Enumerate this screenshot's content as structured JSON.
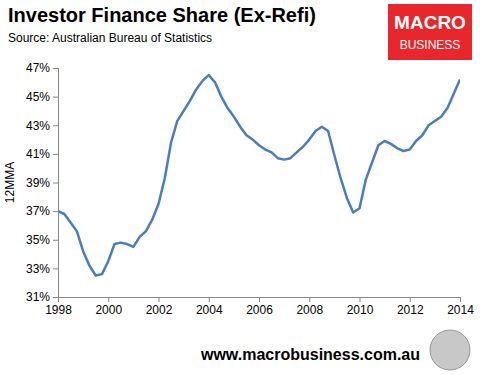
{
  "chart_data": {
    "type": "line",
    "title": "Investor Finance Share (Ex-Refi)",
    "subtitle": "Source: Australian Bureau of Statistics",
    "ylabel": "12MMA",
    "annotations": [
      "MACRO",
      "BUSINESS",
      "www.macrobusiness.com.au"
    ],
    "color": "#4a7ebb",
    "x": [
      1998.0,
      1998.25,
      1998.5,
      1998.75,
      1999.0,
      1999.25,
      1999.5,
      1999.75,
      2000.0,
      2000.25,
      2000.5,
      2000.75,
      2001.0,
      2001.25,
      2001.5,
      2001.75,
      2002.0,
      2002.25,
      2002.5,
      2002.75,
      2003.0,
      2003.25,
      2003.5,
      2003.75,
      2004.0,
      2004.25,
      2004.5,
      2004.75,
      2005.0,
      2005.25,
      2005.5,
      2005.75,
      2006.0,
      2006.25,
      2006.5,
      2006.75,
      2007.0,
      2007.25,
      2007.5,
      2007.75,
      2008.0,
      2008.25,
      2008.5,
      2008.75,
      2009.0,
      2009.25,
      2009.5,
      2009.75,
      2010.0,
      2010.25,
      2010.5,
      2010.75,
      2011.0,
      2011.25,
      2011.5,
      2011.75,
      2012.0,
      2012.25,
      2012.5,
      2012.75,
      2013.0,
      2013.25,
      2013.5,
      2013.75,
      2014.0
    ],
    "values": [
      37.0,
      36.8,
      36.2,
      35.6,
      34.2,
      33.2,
      32.5,
      32.6,
      33.5,
      34.7,
      34.8,
      34.7,
      34.5,
      35.2,
      35.6,
      36.4,
      37.5,
      39.3,
      41.8,
      43.3,
      44.0,
      44.7,
      45.5,
      46.1,
      46.5,
      46.0,
      45.0,
      44.2,
      43.6,
      42.9,
      42.3,
      42.0,
      41.6,
      41.3,
      41.1,
      40.7,
      40.6,
      40.7,
      41.1,
      41.5,
      42.0,
      42.6,
      42.9,
      42.6,
      40.9,
      39.3,
      37.9,
      36.9,
      37.2,
      39.2,
      40.4,
      41.6,
      41.9,
      41.7,
      41.4,
      41.2,
      41.3,
      41.9,
      42.3,
      43.0,
      43.3,
      43.6,
      44.2,
      45.2,
      46.2
    ],
    "xlim": [
      1998,
      2014
    ],
    "xticks": [
      1998,
      2000,
      2002,
      2004,
      2006,
      2008,
      2010,
      2012,
      2014
    ],
    "ylim": [
      31,
      47
    ],
    "yticks": [
      {
        "value": 31,
        "label": "31%"
      },
      {
        "value": 33,
        "label": "33%"
      },
      {
        "value": 35,
        "label": "35%"
      },
      {
        "value": 37,
        "label": "37%"
      },
      {
        "value": 39,
        "label": "39%"
      },
      {
        "value": 41,
        "label": "41%"
      },
      {
        "value": 43,
        "label": "43%"
      },
      {
        "value": 45,
        "label": "45%"
      },
      {
        "value": 47,
        "label": "47%"
      }
    ],
    "grid": false
  }
}
